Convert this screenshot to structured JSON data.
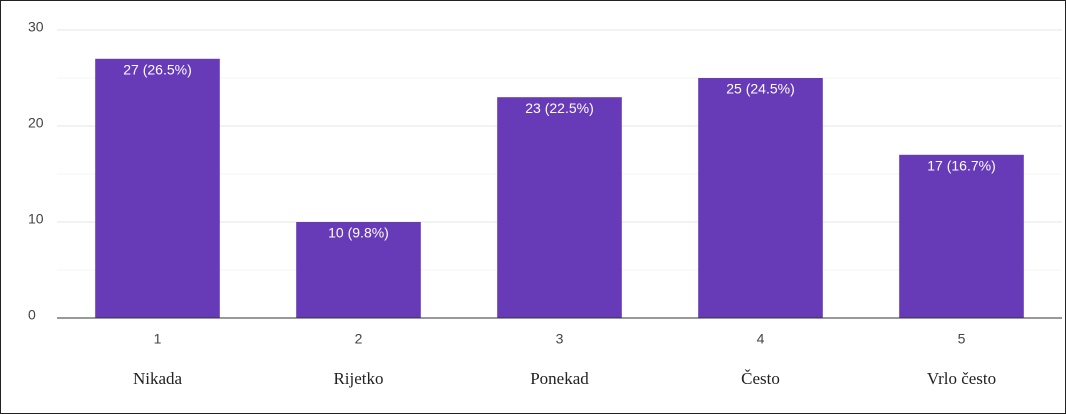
{
  "chart_data": {
    "type": "bar",
    "categories": [
      "1",
      "2",
      "3",
      "4",
      "5"
    ],
    "category_names": [
      "Nikada",
      "Rijetko",
      "Ponekad",
      "Često",
      "Vrlo često"
    ],
    "values": [
      27,
      10,
      23,
      25,
      17
    ],
    "value_labels": [
      "27 (26.5%)",
      "10 (9.8%)",
      "23 (22.5%)",
      "25 (24.5%)",
      "17 (16.7%)"
    ],
    "color": "#673ab7",
    "ylim": [
      0,
      30
    ],
    "yticks": [
      0,
      10,
      20,
      30
    ],
    "minor_yticks": [
      5,
      15,
      25
    ],
    "grid": true
  }
}
